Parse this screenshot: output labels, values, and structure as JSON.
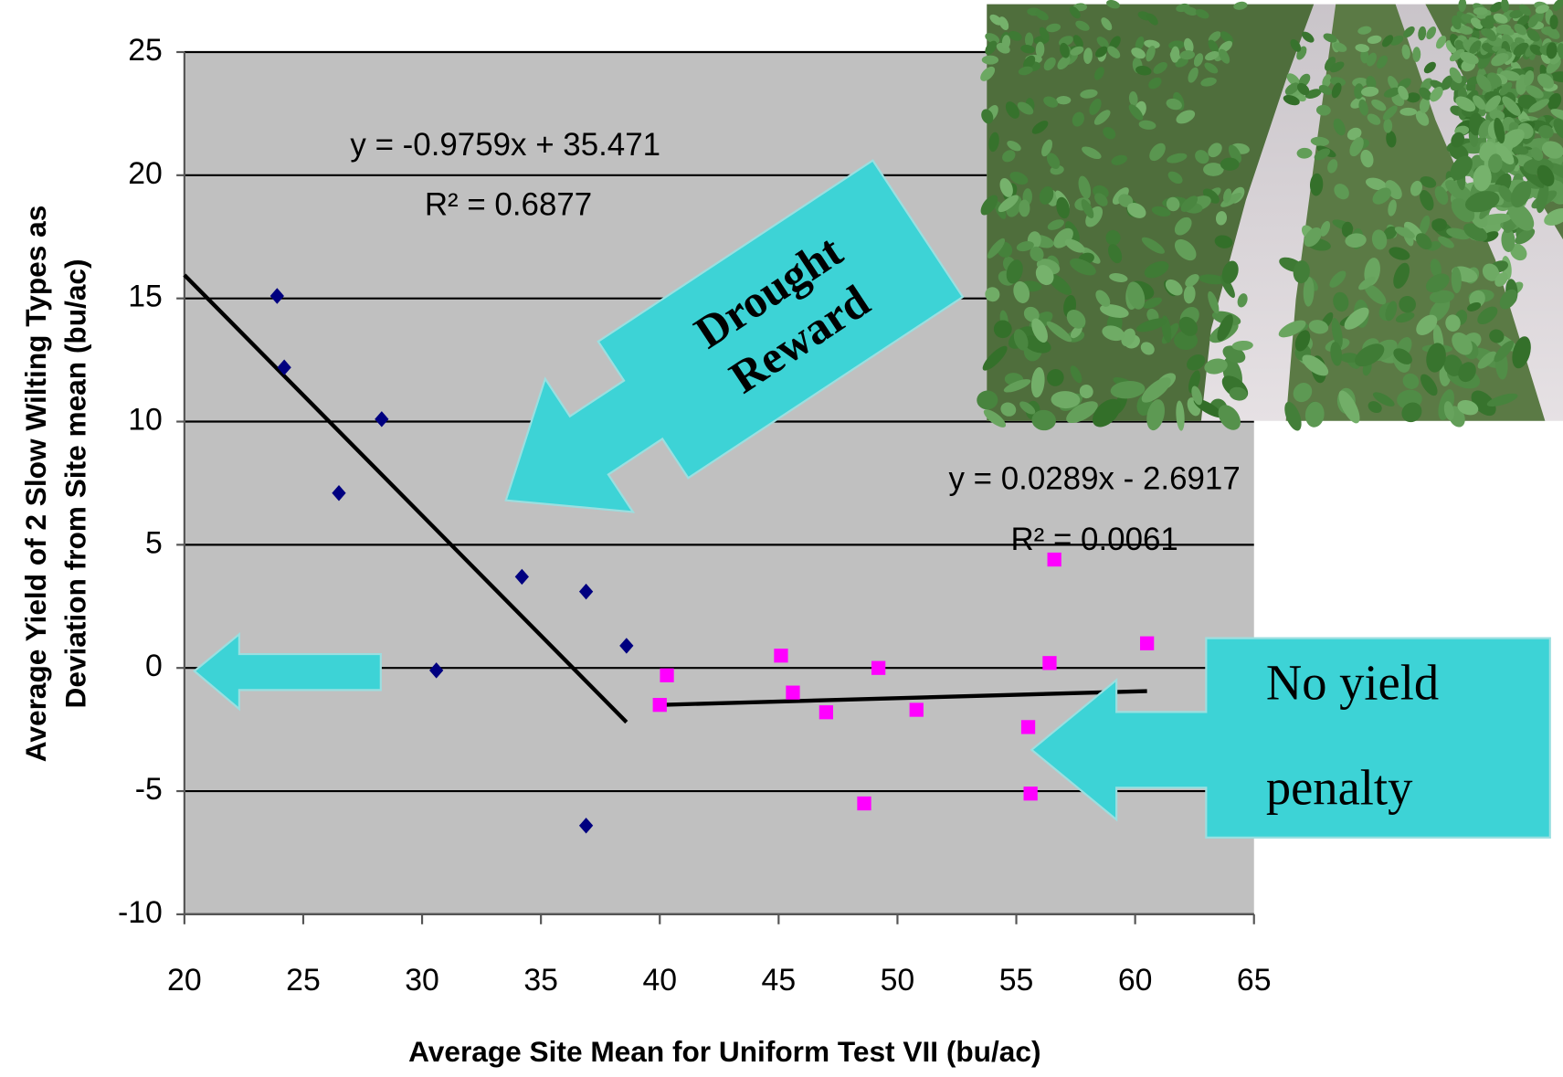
{
  "chart_data": {
    "type": "scatter",
    "xlabel": "Average Site Mean for Uniform Test VII (bu/ac)",
    "ylabel": [
      "Average Yield of 2 Slow Wilting Types as",
      "Deviation from Site mean (bu/ac)"
    ],
    "xlim": [
      20,
      65
    ],
    "ylim": [
      -10,
      25
    ],
    "xticks": [
      20,
      25,
      30,
      35,
      40,
      45,
      50,
      55,
      60,
      65
    ],
    "yticks": [
      -10,
      -5,
      0,
      5,
      10,
      15,
      20,
      25
    ],
    "grid": true,
    "series": [
      {
        "color": "#000080",
        "marker": "diamond",
        "x": [
          23.9,
          24.2,
          26.5,
          28.3,
          30.6,
          34.2,
          36.9,
          36.9,
          38.6
        ],
        "values": [
          15.1,
          12.2,
          7.1,
          10.1,
          -0.1,
          3.7,
          3.1,
          -6.4,
          0.9
        ]
      },
      {
        "color": "#ff00ff",
        "marker": "square",
        "x": [
          40.0,
          40.3,
          45.1,
          45.6,
          47.0,
          48.6,
          49.2,
          50.8,
          55.5,
          55.6,
          56.4,
          56.6,
          60.5
        ],
        "values": [
          -1.5,
          -0.3,
          0.5,
          -1.0,
          -1.8,
          -5.5,
          0.0,
          -1.7,
          -2.4,
          -5.1,
          0.2,
          4.4,
          1.0
        ]
      }
    ],
    "trendlines": [
      {
        "equation": "y = -0.9759x + 35.471",
        "r2": "R² = 0.6877",
        "x": [
          20,
          38.6
        ],
        "y": [
          15.95,
          -2.2
        ]
      },
      {
        "equation": "y = 0.0289x - 2.6917",
        "r2": "R² = 0.0061",
        "x": [
          40,
          60.5
        ],
        "y": [
          -1.5,
          -0.94
        ]
      }
    ],
    "callouts": [
      [
        "Drought",
        "Reward"
      ],
      [
        "No yield",
        "penalty"
      ]
    ]
  }
}
